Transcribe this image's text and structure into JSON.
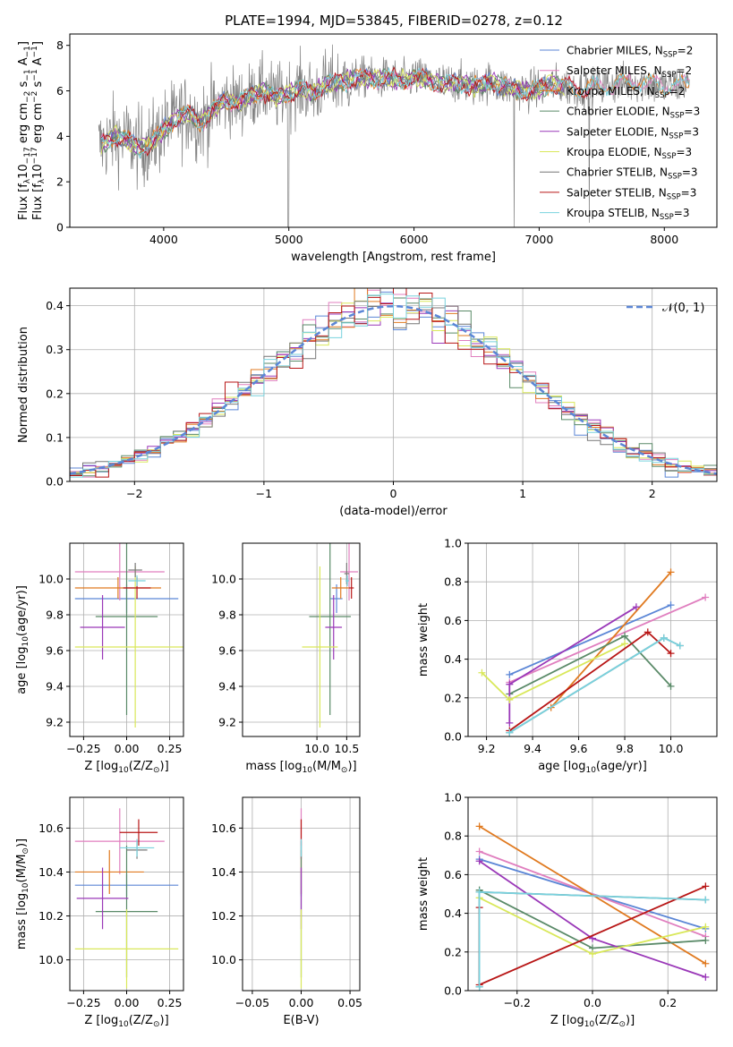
{
  "title": "PLATE=1994, MJD=53845, FIBERID=0278, z=0.12",
  "colors": {
    "cm": "#5b86d6",
    "sm": "#e07fbf",
    "km": "#e07a20",
    "ce": "#5a8a68",
    "se": "#9a38b8",
    "ke": "#d9e85a",
    "cs": "#777777",
    "ss": "#b81616",
    "ks": "#78d2de"
  },
  "chart_data": [
    {
      "id": "spectrum",
      "type": "line",
      "title": "PLATE=1994, MJD=53845, FIBERID=0278, z=0.12",
      "xlabel": "wavelength [Angstrom, rest frame]",
      "ylabel_parts": [
        "Flux [f",
        "λ",
        "10",
        "−17",
        " erg cm",
        "−2",
        " s",
        "−1",
        " A",
        "−1",
        "]"
      ],
      "xlim": [
        3250,
        8420
      ],
      "ylim": [
        0,
        8.5
      ],
      "xticks": [
        4000,
        5000,
        6000,
        7000,
        8000
      ],
      "yticks": [
        0,
        2,
        4,
        6,
        8
      ],
      "grid": false,
      "legend_position": "upper-right",
      "legend": [
        {
          "label": "Chabrier MILES, N",
          "sub": "SSP",
          "tail": "=2",
          "color": "cm"
        },
        {
          "label": "Salpeter MILES, N",
          "sub": "SSP",
          "tail": "=2",
          "color": "sm"
        },
        {
          "label": "Kroupa MILES, N",
          "sub": "SSP",
          "tail": "=2",
          "color": "km"
        },
        {
          "label": "Chabrier ELODIE, N",
          "sub": "SSP",
          "tail": "=3",
          "color": "ce"
        },
        {
          "label": "Salpeter ELODIE, N",
          "sub": "SSP",
          "tail": "=3",
          "color": "se"
        },
        {
          "label": "Kroupa ELODIE, N",
          "sub": "SSP",
          "tail": "=3",
          "color": "ke"
        },
        {
          "label": "Chabrier STELIB, N",
          "sub": "SSP",
          "tail": "=3",
          "color": "cs"
        },
        {
          "label": "Salpeter STELIB, N",
          "sub": "SSP",
          "tail": "=3",
          "color": "ss"
        },
        {
          "label": "Kroupa STELIB, N",
          "sub": "SSP",
          "tail": "=3",
          "color": "ks"
        }
      ],
      "continuum": [
        [
          3500,
          3.6
        ],
        [
          3600,
          4.0
        ],
        [
          3700,
          3.9
        ],
        [
          3800,
          3.5
        ],
        [
          3900,
          3.7
        ],
        [
          4000,
          4.3
        ],
        [
          4100,
          4.8
        ],
        [
          4200,
          5.0
        ],
        [
          4300,
          4.6
        ],
        [
          4400,
          5.2
        ],
        [
          4500,
          5.6
        ],
        [
          4600,
          5.5
        ],
        [
          4700,
          5.8
        ],
        [
          4800,
          6.0
        ],
        [
          4900,
          5.7
        ],
        [
          5000,
          5.9
        ],
        [
          5100,
          6.1
        ],
        [
          5200,
          5.9
        ],
        [
          5300,
          6.3
        ],
        [
          5400,
          6.4
        ],
        [
          5500,
          6.5
        ],
        [
          5600,
          6.6
        ],
        [
          5700,
          6.5
        ],
        [
          5800,
          6.6
        ],
        [
          5900,
          6.4
        ],
        [
          6000,
          6.6
        ],
        [
          6100,
          6.5
        ],
        [
          6200,
          6.3
        ],
        [
          6300,
          6.4
        ],
        [
          6400,
          6.3
        ],
        [
          6500,
          6.2
        ],
        [
          6600,
          6.4
        ],
        [
          6700,
          6.2
        ],
        [
          6800,
          6.1
        ],
        [
          6900,
          6.0
        ],
        [
          7000,
          6.1
        ],
        [
          7100,
          6.3
        ],
        [
          7200,
          6.2
        ],
        [
          7400,
          6.1
        ],
        [
          7600,
          6.3
        ],
        [
          7800,
          6.4
        ],
        [
          8000,
          6.2
        ],
        [
          8200,
          6.3
        ]
      ]
    },
    {
      "id": "residuals",
      "type": "histogram",
      "xlabel": "(data-model)/error",
      "ylabel": "Normed distribution",
      "xlim": [
        -2.5,
        2.5
      ],
      "ylim": [
        0,
        0.44
      ],
      "xticks": [
        -2,
        -1,
        0,
        1,
        2
      ],
      "yticks": [
        0.0,
        0.1,
        0.2,
        0.3,
        0.4
      ],
      "grid": true,
      "bin_width": 0.1,
      "legend_position": "upper-right",
      "legend": [
        {
          "label": "𝒩(0, 1)",
          "color": "cm",
          "style": "dashed"
        }
      ],
      "gaussian": {
        "mean": 0,
        "sigma": 1
      }
    },
    {
      "id": "age-vs-Z",
      "type": "errorbar",
      "xlabel_parts": [
        "Z [log",
        "10",
        "(Z/Z",
        "⊙",
        ")]"
      ],
      "ylabel_parts": [
        "age  [log",
        "10",
        "(age/yr)]"
      ],
      "xlim": [
        -0.33,
        0.33
      ],
      "ylim": [
        9.12,
        10.2
      ],
      "xticks": [
        -0.25,
        0.0,
        0.25
      ],
      "yticks": [
        9.2,
        9.4,
        9.6,
        9.8,
        10.0
      ],
      "grid": true,
      "points": [
        {
          "s": "cm",
          "x": 0.0,
          "xe": 0.3,
          "y": 9.89,
          "ye": 0.08
        },
        {
          "s": "sm",
          "x": -0.04,
          "xe": 0.26,
          "y": 10.04,
          "ye": 0.16
        },
        {
          "s": "km",
          "x": -0.05,
          "xe": 0.25,
          "y": 9.95,
          "ye": 0.06
        },
        {
          "s": "ce",
          "x": 0.0,
          "xe": 0.18,
          "y": 9.79,
          "ye": 0.55
        },
        {
          "s": "se",
          "x": -0.14,
          "xe": 0.13,
          "y": 9.73,
          "ye": 0.18
        },
        {
          "s": "ke",
          "x": 0.05,
          "xe": 0.35,
          "y": 9.62,
          "ye": 0.45
        },
        {
          "s": "cs",
          "x": 0.05,
          "xe": 0.04,
          "y": 10.05,
          "ye": 0.04
        },
        {
          "s": "ss",
          "x": 0.06,
          "xe": 0.08,
          "y": 9.95,
          "ye": 0.06
        },
        {
          "s": "ks",
          "x": 0.06,
          "xe": 0.05,
          "y": 9.99,
          "ye": 0.03
        }
      ]
    },
    {
      "id": "age-vs-mass",
      "type": "errorbar",
      "xlabel_parts": [
        "mass [log",
        "10",
        "(M/M",
        "⊙",
        ")]"
      ],
      "ylabel": "",
      "xlim": [
        8.75,
        10.72
      ],
      "ylim": [
        9.12,
        10.2
      ],
      "xticks": [
        10.0,
        10.5
      ],
      "yticks": [
        9.2,
        9.4,
        9.6,
        9.8,
        10.0
      ],
      "grid": true,
      "points": [
        {
          "s": "cm",
          "x": 10.33,
          "xe": 0.1,
          "y": 9.89,
          "ye": 0.08
        },
        {
          "s": "sm",
          "x": 10.54,
          "xe": 0.15,
          "y": 10.04,
          "ye": 0.16
        },
        {
          "s": "km",
          "x": 10.4,
          "xe": 0.15,
          "y": 9.95,
          "ye": 0.06
        },
        {
          "s": "ce",
          "x": 10.22,
          "xe": 0.35,
          "y": 9.79,
          "ye": 0.55
        },
        {
          "s": "se",
          "x": 10.28,
          "xe": 0.14,
          "y": 9.73,
          "ye": 0.18
        },
        {
          "s": "ke",
          "x": 10.05,
          "xe": 0.3,
          "y": 9.62,
          "ye": 0.45
        },
        {
          "s": "cs",
          "x": 10.5,
          "xe": 0.04,
          "y": 10.03,
          "ye": 0.06
        },
        {
          "s": "ss",
          "x": 10.58,
          "xe": 0.04,
          "y": 9.95,
          "ye": 0.06
        },
        {
          "s": "ks",
          "x": 10.51,
          "xe": 0.03,
          "y": 9.99,
          "ye": 0.03
        }
      ]
    },
    {
      "id": "weight-vs-age",
      "type": "line",
      "xlabel_parts": [
        "age  [log",
        "10",
        "(age/yr)]"
      ],
      "ylabel": "mass weight",
      "xlim": [
        9.12,
        10.2
      ],
      "ylim": [
        0,
        1.0
      ],
      "xticks": [
        9.2,
        9.4,
        9.6,
        9.8,
        10.0
      ],
      "yticks": [
        0.0,
        0.2,
        0.4,
        0.6,
        0.8,
        1.0
      ],
      "grid": true,
      "series": [
        {
          "s": "cm",
          "x": [
            9.3,
            10.0
          ],
          "y": [
            0.32,
            0.68
          ]
        },
        {
          "s": "sm",
          "x": [
            9.3,
            10.15
          ],
          "y": [
            0.28,
            0.72
          ]
        },
        {
          "s": "km",
          "x": [
            9.48,
            10.0
          ],
          "y": [
            0.15,
            0.85
          ]
        },
        {
          "s": "ce",
          "x": [
            9.3,
            9.8,
            10.0
          ],
          "y": [
            0.22,
            0.52,
            0.26
          ]
        },
        {
          "s": "se",
          "x": [
            9.3,
            9.3,
            9.85
          ],
          "y": [
            0.07,
            0.27,
            0.67
          ]
        },
        {
          "s": "ke",
          "x": [
            9.18,
            9.3,
            9.8
          ],
          "y": [
            0.33,
            0.19,
            0.48
          ]
        },
        {
          "s": "cs",
          "x": [
            9.3,
            9.97,
            10.04
          ],
          "y": [
            0.02,
            0.51,
            0.47
          ]
        },
        {
          "s": "ss",
          "x": [
            9.3,
            9.9,
            10.0
          ],
          "y": [
            0.03,
            0.54,
            0.43
          ]
        },
        {
          "s": "ks",
          "x": [
            9.3,
            9.97,
            10.04
          ],
          "y": [
            0.02,
            0.51,
            0.47
          ]
        }
      ]
    },
    {
      "id": "mass-vs-Z",
      "type": "errorbar",
      "xlabel_parts": [
        "Z [log",
        "10",
        "(Z/Z",
        "⊙",
        ")]"
      ],
      "ylabel_parts": [
        "mass [log",
        "10",
        "(M/M",
        "⊙",
        ")]"
      ],
      "xlim": [
        -0.33,
        0.33
      ],
      "ylim": [
        9.86,
        10.74
      ],
      "xticks": [
        -0.25,
        0.0,
        0.25
      ],
      "yticks": [
        10.0,
        10.2,
        10.4,
        10.6
      ],
      "grid": true,
      "points": [
        {
          "s": "cm",
          "x": 0.0,
          "xe": 0.3,
          "y": 10.34,
          "ye": 0.05
        },
        {
          "s": "sm",
          "x": -0.04,
          "xe": 0.26,
          "y": 10.54,
          "ye": 0.15
        },
        {
          "s": "km",
          "x": -0.1,
          "xe": 0.2,
          "y": 10.4,
          "ye": 0.1
        },
        {
          "s": "ce",
          "x": 0.0,
          "xe": 0.18,
          "y": 10.22,
          "ye": 0.3
        },
        {
          "s": "se",
          "x": -0.14,
          "xe": 0.15,
          "y": 10.28,
          "ye": 0.14
        },
        {
          "s": "ke",
          "x": 0.0,
          "xe": 0.3,
          "y": 10.05,
          "ye": 0.18
        },
        {
          "s": "cs",
          "x": 0.06,
          "xe": 0.06,
          "y": 10.5,
          "ye": 0.04
        },
        {
          "s": "ss",
          "x": 0.07,
          "xe": 0.11,
          "y": 10.58,
          "ye": 0.06
        },
        {
          "s": "ks",
          "x": 0.06,
          "xe": 0.1,
          "y": 10.51,
          "ye": 0.04
        }
      ]
    },
    {
      "id": "mass-vs-EBV",
      "type": "errorbar",
      "xlabel": "E(B-V)",
      "ylabel": "",
      "xlim": [
        -0.06,
        0.06
      ],
      "ylim": [
        9.86,
        10.74
      ],
      "xticks": [
        -0.05,
        0.0,
        0.05
      ],
      "yticks": [
        10.0,
        10.2,
        10.4,
        10.6
      ],
      "grid": true,
      "points": [
        {
          "s": "cm",
          "x": 0.0,
          "xe": 0.0,
          "y": 10.34,
          "ye": 0.05
        },
        {
          "s": "sm",
          "x": 0.0,
          "xe": 0.0,
          "y": 10.54,
          "ye": 0.15
        },
        {
          "s": "km",
          "x": 0.0,
          "xe": 0.0,
          "y": 10.4,
          "ye": 0.1
        },
        {
          "s": "ce",
          "x": 0.0,
          "xe": 0.0,
          "y": 10.22,
          "ye": 0.3
        },
        {
          "s": "se",
          "x": 0.0,
          "xe": 0.0,
          "y": 10.28,
          "ye": 0.14
        },
        {
          "s": "ke",
          "x": 0.0,
          "xe": 0.0,
          "y": 10.05,
          "ye": 0.18
        },
        {
          "s": "cs",
          "x": 0.0,
          "xe": 0.0,
          "y": 10.5,
          "ye": 0.04
        },
        {
          "s": "ss",
          "x": 0.0,
          "xe": 0.0,
          "y": 10.58,
          "ye": 0.06
        },
        {
          "s": "ks",
          "x": 0.0,
          "xe": 0.0,
          "y": 10.51,
          "ye": 0.04
        }
      ]
    },
    {
      "id": "weight-vs-Z",
      "type": "line",
      "xlabel_parts": [
        "Z [log",
        "10",
        "(Z/Z",
        "⊙",
        ")]"
      ],
      "ylabel": "mass weight",
      "xlim": [
        -0.33,
        0.33
      ],
      "ylim": [
        0,
        1.0
      ],
      "xticks": [
        -0.2,
        0.0,
        0.2
      ],
      "yticks": [
        0.0,
        0.2,
        0.4,
        0.6,
        0.8,
        1.0
      ],
      "grid": true,
      "series": [
        {
          "s": "cm",
          "x": [
            -0.3,
            0.3
          ],
          "y": [
            0.68,
            0.32
          ]
        },
        {
          "s": "sm",
          "x": [
            -0.3,
            0.3
          ],
          "y": [
            0.72,
            0.28
          ]
        },
        {
          "s": "km",
          "x": [
            -0.3,
            0.3
          ],
          "y": [
            0.85,
            0.14
          ]
        },
        {
          "s": "ce",
          "x": [
            -0.3,
            0.0,
            0.3
          ],
          "y": [
            0.52,
            0.22,
            0.26
          ]
        },
        {
          "s": "se",
          "x": [
            -0.3,
            0.0,
            0.3
          ],
          "y": [
            0.67,
            0.27,
            0.07
          ]
        },
        {
          "s": "ke",
          "x": [
            -0.3,
            0.0,
            0.3
          ],
          "y": [
            0.48,
            0.19,
            0.33
          ]
        },
        {
          "s": "cs",
          "x": [
            -0.3,
            -0.3,
            0.3
          ],
          "y": [
            0.02,
            0.51,
            0.47
          ]
        },
        {
          "s": "ss",
          "x": [
            -0.3,
            -0.3,
            0.3
          ],
          "y": [
            0.43,
            0.03,
            0.54
          ]
        },
        {
          "s": "ks",
          "x": [
            -0.3,
            -0.3,
            0.3
          ],
          "y": [
            0.02,
            0.51,
            0.47
          ]
        }
      ]
    }
  ]
}
